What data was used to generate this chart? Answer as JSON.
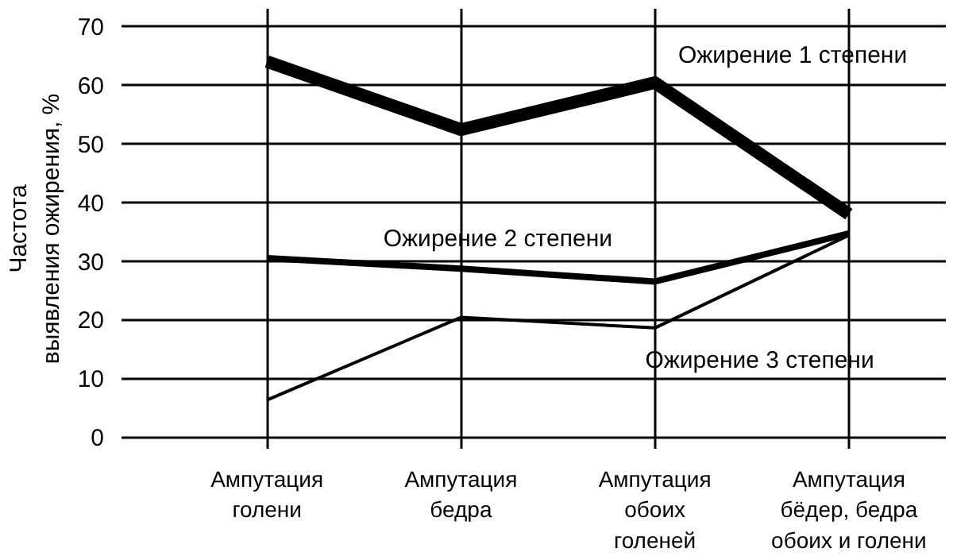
{
  "chart_data": {
    "type": "line",
    "ylabel": "Частота\nвыявления ожирения, %",
    "categories": [
      "Ампутация\nголени",
      "Ампутация\nбедра",
      "Ампутация\nобоих\nголеней",
      "Ампутация\nбёдер, бедра\nобоих и голени"
    ],
    "series": [
      {
        "name": "Ожирение 1 степени",
        "color": "#000000",
        "values": [
          64,
          52.4,
          60.4,
          38
        ]
      },
      {
        "name": "Ожирение 2 степени",
        "color": "#000000",
        "values": [
          30.5,
          28.7,
          26.5,
          34.7
        ]
      },
      {
        "name": "Ожирение 3 степени",
        "color": "#000000",
        "values": [
          6.3,
          20.4,
          18.6,
          34.4
        ]
      }
    ],
    "ylim": [
      -2,
      73
    ],
    "yticks": [
      0,
      10,
      20,
      30,
      40,
      50,
      60,
      70
    ],
    "grid": true,
    "legend": false,
    "line_style": "solid",
    "marker": "none"
  }
}
